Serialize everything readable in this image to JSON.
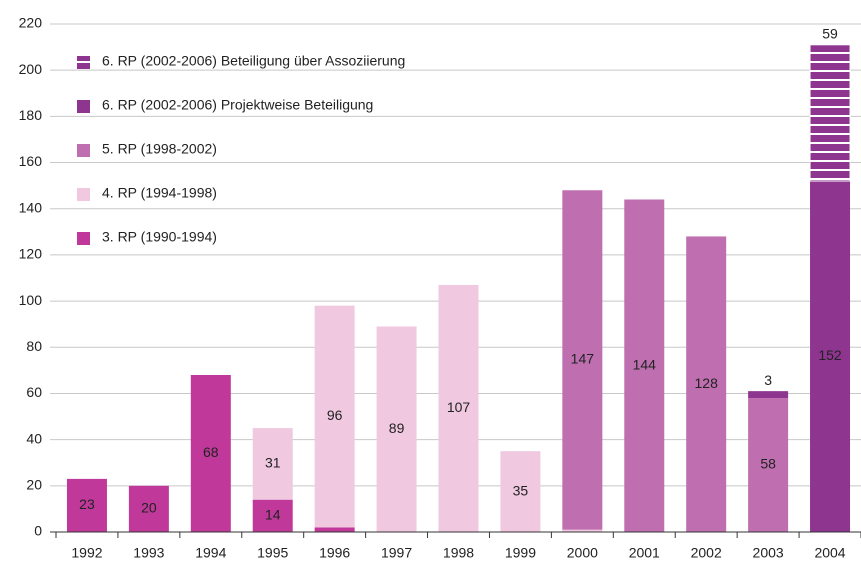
{
  "chart_data": {
    "type": "stacked_bar",
    "categories": [
      "1992",
      "1993",
      "1994",
      "1995",
      "1996",
      "1997",
      "1998",
      "1999",
      "2000",
      "2001",
      "2002",
      "2003",
      "2004"
    ],
    "series": [
      {
        "name": "3. RP (1990-1994)",
        "color": "#c0399a",
        "values": [
          23,
          20,
          68,
          14,
          2,
          null,
          null,
          null,
          null,
          null,
          null,
          null,
          null
        ]
      },
      {
        "name": "4. RP (1994-1998)",
        "color": "#f0c9e1",
        "values": [
          null,
          null,
          null,
          31,
          96,
          89,
          107,
          35,
          1,
          null,
          null,
          null,
          null
        ]
      },
      {
        "name": "5. RP (1998-2002)",
        "color": "#bf6fb0",
        "values": [
          null,
          null,
          null,
          null,
          null,
          null,
          null,
          null,
          147,
          144,
          128,
          58,
          null
        ]
      },
      {
        "name": "6. RP (2002-2006) Projektweise Beteiligung",
        "color": "#8e3590",
        "values": [
          null,
          null,
          null,
          null,
          null,
          null,
          null,
          null,
          null,
          null,
          null,
          3,
          152
        ]
      },
      {
        "name": "6. RP (2002-2006) Beteiligung über Assoziierung",
        "color": "#8e3590",
        "pattern": "striped",
        "values": [
          null,
          null,
          null,
          null,
          null,
          null,
          null,
          null,
          null,
          null,
          null,
          null,
          59
        ]
      }
    ],
    "ylim": [
      0,
      220
    ],
    "yticks": [
      0,
      20,
      40,
      60,
      80,
      100,
      120,
      140,
      160,
      180,
      200,
      220
    ],
    "grid": true,
    "legend": "top-left"
  }
}
